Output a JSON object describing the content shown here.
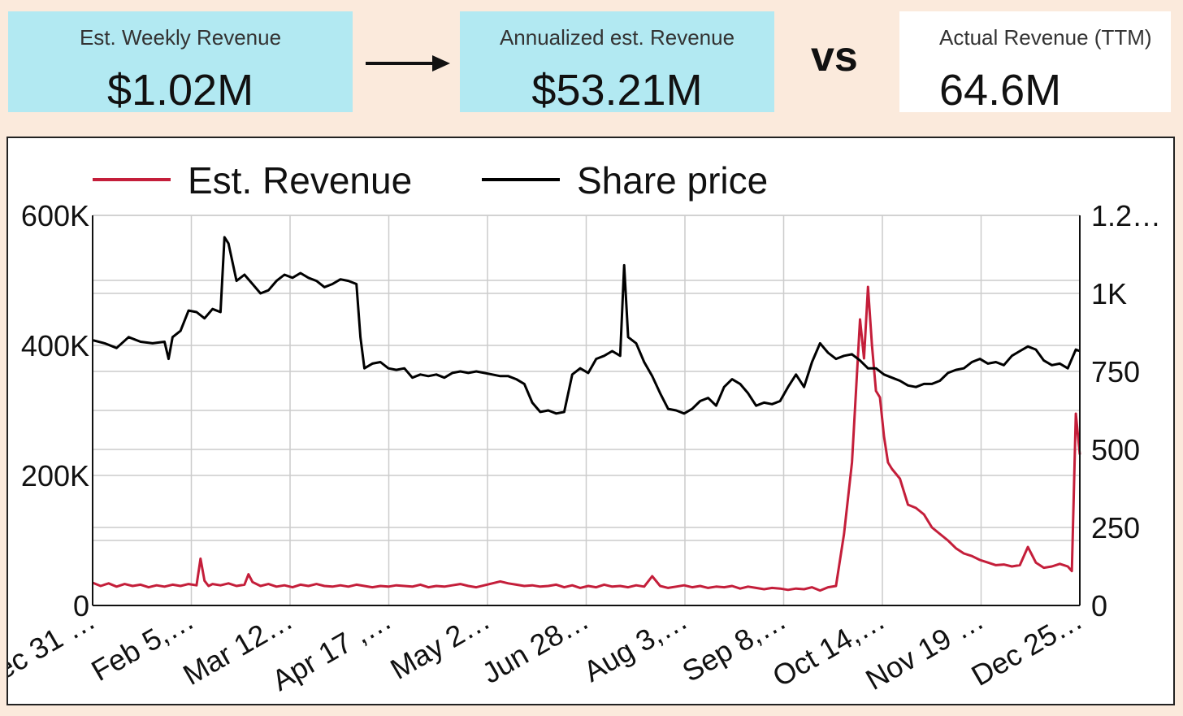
{
  "stats": {
    "weekly": {
      "label": "Est. Weekly Revenue",
      "value": "$1.02M"
    },
    "annualized": {
      "label": "Annualized est. Revenue",
      "value": "$53.21M"
    },
    "vs": "vs",
    "actual": {
      "label": "Actual Revenue (TTM)",
      "value": "64.6M"
    }
  },
  "colors": {
    "card_bg": "#b2e9f2",
    "page_bg": "#fbeadc",
    "revenue": "#c41e3a",
    "share_price": "#000000",
    "grid": "#cccccc"
  },
  "chart_data": {
    "type": "line",
    "legend_position": "top-left",
    "grid": true,
    "x_tick_labels": [
      "ec 31 …",
      "Feb 5,…",
      "Mar 12…",
      "Apr 17 ,…",
      "May 2…",
      "Jun 28…",
      "Aug 3,…",
      "Sep 8,…",
      "Oct 14,…",
      "Nov 19 …",
      "Dec 25…"
    ],
    "y_left": {
      "ticks": [
        "0",
        "200K",
        "400K",
        "600K"
      ],
      "range": [
        0,
        600000
      ]
    },
    "y_right": {
      "ticks": [
        "0",
        "250",
        "500",
        "750",
        "1K",
        "1.2…"
      ],
      "range": [
        0,
        1250
      ]
    },
    "series": [
      {
        "name": "Est. Revenue",
        "axis": "left",
        "color": "#c41e3a",
        "points": [
          [
            0,
            35000
          ],
          [
            2,
            30000
          ],
          [
            4,
            34000
          ],
          [
            6,
            29000
          ],
          [
            8,
            33000
          ],
          [
            10,
            30000
          ],
          [
            12,
            32000
          ],
          [
            14,
            28000
          ],
          [
            16,
            31000
          ],
          [
            18,
            29000
          ],
          [
            20,
            32000
          ],
          [
            22,
            30000
          ],
          [
            24,
            33000
          ],
          [
            26,
            31000
          ],
          [
            27,
            72000
          ],
          [
            28,
            38000
          ],
          [
            29,
            30000
          ],
          [
            30,
            33000
          ],
          [
            32,
            31000
          ],
          [
            34,
            34000
          ],
          [
            36,
            30000
          ],
          [
            38,
            32000
          ],
          [
            39,
            48000
          ],
          [
            40,
            36000
          ],
          [
            42,
            30000
          ],
          [
            44,
            33000
          ],
          [
            46,
            29000
          ],
          [
            48,
            31000
          ],
          [
            50,
            28000
          ],
          [
            52,
            32000
          ],
          [
            54,
            30000
          ],
          [
            56,
            33000
          ],
          [
            58,
            30000
          ],
          [
            60,
            29000
          ],
          [
            62,
            31000
          ],
          [
            64,
            29000
          ],
          [
            66,
            32000
          ],
          [
            68,
            30000
          ],
          [
            70,
            28000
          ],
          [
            72,
            30000
          ],
          [
            74,
            29000
          ],
          [
            76,
            31000
          ],
          [
            78,
            30000
          ],
          [
            80,
            29000
          ],
          [
            82,
            32000
          ],
          [
            84,
            28000
          ],
          [
            86,
            30000
          ],
          [
            88,
            29000
          ],
          [
            90,
            31000
          ],
          [
            92,
            33000
          ],
          [
            94,
            30000
          ],
          [
            96,
            28000
          ],
          [
            98,
            31000
          ],
          [
            100,
            34000
          ],
          [
            102,
            37000
          ],
          [
            104,
            34000
          ],
          [
            106,
            32000
          ],
          [
            108,
            30000
          ],
          [
            110,
            31000
          ],
          [
            112,
            29000
          ],
          [
            114,
            30000
          ],
          [
            116,
            32000
          ],
          [
            118,
            28000
          ],
          [
            120,
            31000
          ],
          [
            122,
            27000
          ],
          [
            124,
            30000
          ],
          [
            126,
            28000
          ],
          [
            128,
            32000
          ],
          [
            130,
            29000
          ],
          [
            132,
            30000
          ],
          [
            134,
            28000
          ],
          [
            136,
            31000
          ],
          [
            138,
            29000
          ],
          [
            140,
            45000
          ],
          [
            142,
            30000
          ],
          [
            144,
            27000
          ],
          [
            146,
            29000
          ],
          [
            148,
            31000
          ],
          [
            150,
            28000
          ],
          [
            152,
            30000
          ],
          [
            154,
            27000
          ],
          [
            156,
            29000
          ],
          [
            158,
            28000
          ],
          [
            160,
            30000
          ],
          [
            162,
            26000
          ],
          [
            164,
            29000
          ],
          [
            166,
            27000
          ],
          [
            168,
            25000
          ],
          [
            170,
            27000
          ],
          [
            172,
            26000
          ],
          [
            174,
            24000
          ],
          [
            176,
            26000
          ],
          [
            178,
            25000
          ],
          [
            180,
            28000
          ],
          [
            182,
            23000
          ],
          [
            184,
            28000
          ],
          [
            186,
            30000
          ],
          [
            188,
            110000
          ],
          [
            190,
            220000
          ],
          [
            192,
            440000
          ],
          [
            193,
            380000
          ],
          [
            194,
            490000
          ],
          [
            195,
            400000
          ],
          [
            196,
            330000
          ],
          [
            197,
            320000
          ],
          [
            198,
            260000
          ],
          [
            199,
            220000
          ],
          [
            200,
            210000
          ],
          [
            202,
            195000
          ],
          [
            204,
            155000
          ],
          [
            206,
            150000
          ],
          [
            208,
            140000
          ],
          [
            210,
            120000
          ],
          [
            212,
            110000
          ],
          [
            214,
            100000
          ],
          [
            216,
            88000
          ],
          [
            218,
            80000
          ],
          [
            220,
            76000
          ],
          [
            222,
            70000
          ],
          [
            224,
            66000
          ],
          [
            226,
            62000
          ],
          [
            228,
            63000
          ],
          [
            230,
            60000
          ],
          [
            232,
            62000
          ],
          [
            234,
            90000
          ],
          [
            236,
            66000
          ],
          [
            238,
            58000
          ],
          [
            240,
            60000
          ],
          [
            242,
            64000
          ],
          [
            244,
            60000
          ],
          [
            245,
            53000
          ],
          [
            246,
            295000
          ],
          [
            247,
            232000
          ]
        ]
      },
      {
        "name": "Share price",
        "axis": "right",
        "color": "#000000",
        "points": [
          [
            0,
            850
          ],
          [
            3,
            840
          ],
          [
            6,
            825
          ],
          [
            9,
            860
          ],
          [
            12,
            845
          ],
          [
            15,
            840
          ],
          [
            18,
            845
          ],
          [
            19,
            790
          ],
          [
            20,
            860
          ],
          [
            22,
            880
          ],
          [
            24,
            945
          ],
          [
            26,
            940
          ],
          [
            28,
            920
          ],
          [
            30,
            950
          ],
          [
            32,
            940
          ],
          [
            33,
            1180
          ],
          [
            34,
            1160
          ],
          [
            36,
            1040
          ],
          [
            38,
            1060
          ],
          [
            40,
            1030
          ],
          [
            42,
            1000
          ],
          [
            44,
            1010
          ],
          [
            46,
            1040
          ],
          [
            48,
            1060
          ],
          [
            50,
            1050
          ],
          [
            52,
            1065
          ],
          [
            54,
            1050
          ],
          [
            56,
            1040
          ],
          [
            58,
            1020
          ],
          [
            60,
            1030
          ],
          [
            62,
            1045
          ],
          [
            64,
            1040
          ],
          [
            66,
            1030
          ],
          [
            67,
            860
          ],
          [
            68,
            760
          ],
          [
            70,
            775
          ],
          [
            72,
            780
          ],
          [
            74,
            760
          ],
          [
            76,
            755
          ],
          [
            78,
            760
          ],
          [
            80,
            730
          ],
          [
            82,
            740
          ],
          [
            84,
            735
          ],
          [
            86,
            740
          ],
          [
            88,
            730
          ],
          [
            90,
            745
          ],
          [
            92,
            750
          ],
          [
            94,
            745
          ],
          [
            96,
            750
          ],
          [
            98,
            745
          ],
          [
            100,
            740
          ],
          [
            102,
            735
          ],
          [
            104,
            735
          ],
          [
            106,
            725
          ],
          [
            108,
            710
          ],
          [
            110,
            650
          ],
          [
            112,
            620
          ],
          [
            114,
            625
          ],
          [
            116,
            615
          ],
          [
            118,
            620
          ],
          [
            120,
            740
          ],
          [
            122,
            760
          ],
          [
            124,
            745
          ],
          [
            126,
            790
          ],
          [
            128,
            800
          ],
          [
            130,
            815
          ],
          [
            132,
            800
          ],
          [
            133,
            1090
          ],
          [
            134,
            860
          ],
          [
            136,
            840
          ],
          [
            138,
            780
          ],
          [
            140,
            735
          ],
          [
            142,
            680
          ],
          [
            144,
            630
          ],
          [
            146,
            625
          ],
          [
            148,
            615
          ],
          [
            150,
            630
          ],
          [
            152,
            655
          ],
          [
            154,
            665
          ],
          [
            156,
            640
          ],
          [
            158,
            700
          ],
          [
            160,
            725
          ],
          [
            162,
            710
          ],
          [
            164,
            680
          ],
          [
            166,
            640
          ],
          [
            168,
            650
          ],
          [
            170,
            645
          ],
          [
            172,
            655
          ],
          [
            174,
            700
          ],
          [
            176,
            740
          ],
          [
            178,
            700
          ],
          [
            180,
            780
          ],
          [
            182,
            840
          ],
          [
            184,
            810
          ],
          [
            186,
            790
          ],
          [
            188,
            800
          ],
          [
            190,
            805
          ],
          [
            192,
            785
          ],
          [
            194,
            760
          ],
          [
            196,
            760
          ],
          [
            198,
            740
          ],
          [
            200,
            730
          ],
          [
            202,
            720
          ],
          [
            204,
            705
          ],
          [
            206,
            700
          ],
          [
            208,
            710
          ],
          [
            210,
            710
          ],
          [
            212,
            720
          ],
          [
            214,
            745
          ],
          [
            216,
            755
          ],
          [
            218,
            760
          ],
          [
            220,
            780
          ],
          [
            222,
            790
          ],
          [
            224,
            775
          ],
          [
            226,
            780
          ],
          [
            228,
            770
          ],
          [
            230,
            800
          ],
          [
            232,
            815
          ],
          [
            234,
            830
          ],
          [
            236,
            820
          ],
          [
            238,
            785
          ],
          [
            240,
            770
          ],
          [
            242,
            775
          ],
          [
            244,
            760
          ],
          [
            246,
            820
          ],
          [
            247,
            815
          ]
        ]
      }
    ]
  }
}
